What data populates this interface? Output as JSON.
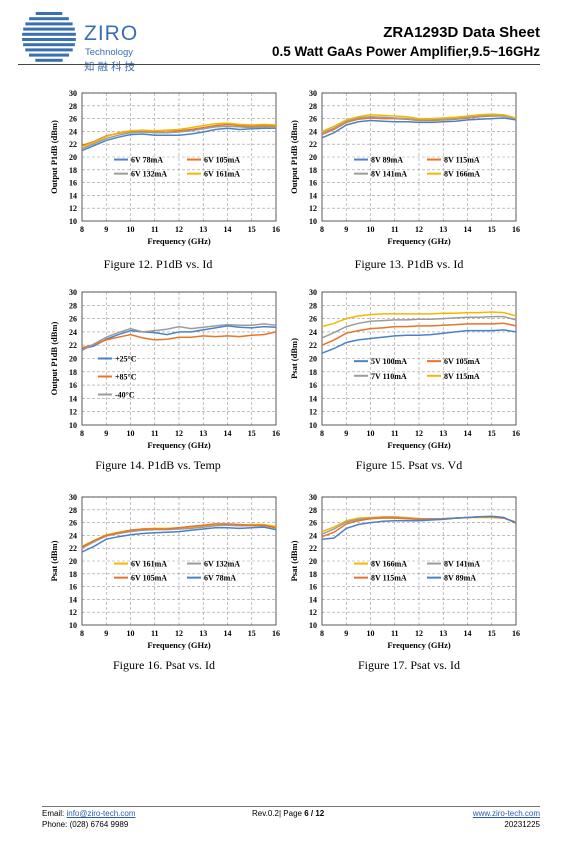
{
  "header": {
    "logo_name": "ZIRO",
    "logo_sub": "Technology",
    "logo_cn": "知融科技",
    "title": "ZRA1293D Data Sheet",
    "subtitle": "0.5 Watt GaAs Power Amplifier,9.5~16GHz",
    "logo_color": "#3a6fb0"
  },
  "footer": {
    "email_label": "Email:",
    "email": "info@ziro-tech.com",
    "phone_label": "Phone:",
    "phone": "(028) 6764 9989",
    "rev": "Rev.0.2| Page",
    "page": "6 / 12",
    "website": "www.ziro-tech.com",
    "date": "20231225"
  },
  "chart_data": [
    {
      "type": "line",
      "caption": "Figure 12. P1dB vs. Id",
      "xlabel": "Frequency (GHz)",
      "ylabel": "Output P1dB (dBm)",
      "xlim": [
        8,
        16
      ],
      "ylim": [
        10,
        30
      ],
      "xticks": [
        8,
        9,
        10,
        11,
        12,
        13,
        14,
        15,
        16
      ],
      "yticks": [
        10,
        12,
        14,
        16,
        18,
        20,
        22,
        24,
        26,
        28,
        30
      ],
      "grid": true,
      "legend": "bottom-center",
      "x": [
        8,
        8.5,
        9,
        9.5,
        10,
        10.5,
        11,
        11.5,
        12,
        12.5,
        13,
        13.5,
        14,
        14.5,
        15,
        15.5,
        16
      ],
      "series": [
        {
          "name": "6V 78mA",
          "color": "#4a82c8",
          "values": [
            21.0,
            21.8,
            22.6,
            23.1,
            23.5,
            23.6,
            23.4,
            23.4,
            23.4,
            23.6,
            23.9,
            24.3,
            24.5,
            24.3,
            24.4,
            24.5,
            24.5
          ]
        },
        {
          "name": "6V 105mA",
          "color": "#e8742a",
          "values": [
            21.8,
            22.4,
            23.3,
            23.7,
            24.0,
            24.1,
            24.0,
            24.1,
            24.1,
            24.3,
            24.6,
            24.9,
            25.1,
            24.9,
            24.8,
            24.9,
            24.8
          ]
        },
        {
          "name": "6V 132mA",
          "color": "#9c9c9c",
          "values": [
            21.3,
            22.1,
            22.9,
            23.4,
            23.8,
            23.9,
            23.8,
            23.8,
            23.9,
            24.1,
            24.4,
            24.7,
            24.8,
            24.7,
            24.6,
            24.7,
            24.6
          ]
        },
        {
          "name": "6V 161mA",
          "color": "#f2b800",
          "values": [
            21.6,
            22.3,
            23.2,
            23.8,
            24.1,
            24.2,
            24.1,
            24.2,
            24.3,
            24.6,
            24.9,
            25.2,
            25.3,
            25.1,
            25.0,
            25.1,
            25.0
          ]
        }
      ],
      "legend_order": [
        "6V 78mA",
        "6V 105mA",
        "6V 132mA",
        "6V 161mA"
      ]
    },
    {
      "type": "line",
      "caption": "Figure 13. P1dB vs. Id",
      "xlabel": "Frequency (GHz)",
      "ylabel": "Output P1dB (dBm)",
      "xlim": [
        8,
        16
      ],
      "ylim": [
        10,
        30
      ],
      "xticks": [
        8,
        9,
        10,
        11,
        12,
        13,
        14,
        15,
        16
      ],
      "yticks": [
        10,
        12,
        14,
        16,
        18,
        20,
        22,
        24,
        26,
        28,
        30
      ],
      "grid": true,
      "legend": "bottom-center",
      "x": [
        8,
        8.5,
        9,
        9.5,
        10,
        10.5,
        11,
        11.5,
        12,
        12.5,
        13,
        13.5,
        14,
        14.5,
        15,
        15.5,
        16
      ],
      "series": [
        {
          "name": "8V 89mA",
          "color": "#4a82c8",
          "values": [
            23.0,
            23.8,
            25.0,
            25.5,
            25.7,
            25.6,
            25.5,
            25.5,
            25.4,
            25.4,
            25.5,
            25.6,
            25.8,
            25.9,
            26.0,
            26.1,
            25.8
          ]
        },
        {
          "name": "8V 115mA",
          "color": "#e8742a",
          "values": [
            23.5,
            24.3,
            25.4,
            25.9,
            26.1,
            26.0,
            26.0,
            25.9,
            25.7,
            25.7,
            25.8,
            25.9,
            26.1,
            26.3,
            26.4,
            26.4,
            26.0
          ]
        },
        {
          "name": "8V 141mA",
          "color": "#9c9c9c",
          "values": [
            23.8,
            24.5,
            25.6,
            26.1,
            26.3,
            26.2,
            26.1,
            26.0,
            25.8,
            25.8,
            25.9,
            26.0,
            26.2,
            26.4,
            26.5,
            26.4,
            26.0
          ]
        },
        {
          "name": "8V 166mA",
          "color": "#f2b800",
          "values": [
            24.0,
            24.8,
            25.8,
            26.3,
            26.6,
            26.5,
            26.4,
            26.3,
            26.0,
            26.0,
            26.1,
            26.2,
            26.4,
            26.6,
            26.7,
            26.6,
            26.1
          ]
        }
      ],
      "legend_order": [
        "8V 89mA",
        "8V 115mA",
        "8V 141mA",
        "8V 166mA"
      ]
    },
    {
      "type": "line",
      "caption": "Figure 14. P1dB vs. Temp",
      "xlabel": "Frequency (GHz)",
      "ylabel": "Output P1dB (dBm)",
      "xlim": [
        8,
        16
      ],
      "ylim": [
        10,
        30
      ],
      "xticks": [
        8,
        9,
        10,
        11,
        12,
        13,
        14,
        15,
        16
      ],
      "yticks": [
        10,
        12,
        14,
        16,
        18,
        20,
        22,
        24,
        26,
        28,
        30
      ],
      "grid": true,
      "legend": "left-center",
      "x": [
        8,
        8.5,
        9,
        9.5,
        10,
        10.5,
        11,
        11.5,
        12,
        12.5,
        13,
        13.5,
        14,
        14.5,
        15,
        15.5,
        16
      ],
      "series": [
        {
          "name": "+25°C",
          "color": "#4a82c8",
          "values": [
            21.4,
            21.9,
            22.9,
            23.6,
            24.2,
            24.0,
            23.9,
            23.6,
            24.0,
            24.0,
            24.3,
            24.6,
            24.9,
            24.7,
            24.6,
            24.8,
            24.7
          ]
        },
        {
          "name": "+85°C",
          "color": "#e8742a",
          "values": [
            21.6,
            22.1,
            22.8,
            23.2,
            23.6,
            23.1,
            22.8,
            22.9,
            23.2,
            23.2,
            23.4,
            23.3,
            23.4,
            23.3,
            23.5,
            23.6,
            24.0
          ]
        },
        {
          "name": "-40°C",
          "color": "#9c9c9c",
          "values": [
            21.2,
            22.2,
            23.2,
            23.9,
            24.5,
            24.0,
            24.2,
            24.4,
            24.8,
            24.5,
            24.7,
            24.9,
            25.1,
            25.0,
            25.0,
            25.2,
            25.0
          ]
        }
      ],
      "legend_order": [
        "+25°C",
        "+85°C",
        "-40°C"
      ]
    },
    {
      "type": "line",
      "caption": "Figure 15. Psat vs. Vd",
      "xlabel": "Frequency (GHz)",
      "ylabel": "Psat (dBm)",
      "xlim": [
        8,
        16
      ],
      "ylim": [
        10,
        30
      ],
      "xticks": [
        8,
        9,
        10,
        11,
        12,
        13,
        14,
        15,
        16
      ],
      "yticks": [
        10,
        12,
        14,
        16,
        18,
        20,
        22,
        24,
        26,
        28,
        30
      ],
      "grid": true,
      "legend": "bottom-center",
      "x": [
        8,
        8.5,
        9,
        9.5,
        10,
        10.5,
        11,
        11.5,
        12,
        12.5,
        13,
        13.5,
        14,
        14.5,
        15,
        15.5,
        16
      ],
      "series": [
        {
          "name": "5V 100mA",
          "color": "#4a82c8",
          "values": [
            20.8,
            21.5,
            22.4,
            22.8,
            23.0,
            23.2,
            23.4,
            23.5,
            23.5,
            23.6,
            23.8,
            24.0,
            24.2,
            24.2,
            24.2,
            24.3,
            24.0
          ]
        },
        {
          "name": "6V 105mA",
          "color": "#e8742a",
          "values": [
            22.0,
            22.8,
            23.8,
            24.2,
            24.5,
            24.6,
            24.8,
            24.8,
            24.9,
            24.9,
            25.0,
            25.1,
            25.2,
            25.2,
            25.2,
            25.3,
            24.9
          ]
        },
        {
          "name": "7V 110mA",
          "color": "#9c9c9c",
          "values": [
            23.1,
            23.9,
            24.8,
            25.3,
            25.6,
            25.7,
            25.8,
            25.8,
            25.9,
            25.9,
            26.0,
            26.1,
            26.2,
            26.2,
            26.3,
            26.3,
            25.8
          ]
        },
        {
          "name": "8V 115mA",
          "color": "#f2b800",
          "values": [
            24.8,
            25.3,
            26.0,
            26.4,
            26.6,
            26.7,
            26.7,
            26.7,
            26.7,
            26.7,
            26.8,
            26.8,
            26.9,
            26.9,
            27.0,
            26.9,
            26.4
          ]
        }
      ],
      "legend_order": [
        "5V 100mA",
        "6V 105mA",
        "7V 110mA",
        "8V 115mA"
      ]
    },
    {
      "type": "line",
      "caption": "Figure 16. Psat vs. Id",
      "xlabel": "Frequency (GHz)",
      "ylabel": "Psat (dBm)",
      "xlim": [
        8,
        16
      ],
      "ylim": [
        10,
        30
      ],
      "xticks": [
        8,
        9,
        10,
        11,
        12,
        13,
        14,
        15,
        16
      ],
      "yticks": [
        10,
        12,
        14,
        16,
        18,
        20,
        22,
        24,
        26,
        28,
        30
      ],
      "grid": true,
      "legend": "bottom-center",
      "x": [
        8,
        8.5,
        9,
        9.5,
        10,
        10.5,
        11,
        11.5,
        12,
        12.5,
        13,
        13.5,
        14,
        14.5,
        15,
        15.5,
        16
      ],
      "series": [
        {
          "name": "6V 161mA",
          "color": "#f2b800",
          "values": [
            22.3,
            23.2,
            24.1,
            24.5,
            24.8,
            25.0,
            25.1,
            25.1,
            25.2,
            25.3,
            25.5,
            25.6,
            25.7,
            25.6,
            25.7,
            25.7,
            25.4
          ]
        },
        {
          "name": "6V 132mA",
          "color": "#9c9c9c",
          "values": [
            22.0,
            23.0,
            23.9,
            24.3,
            24.6,
            24.8,
            24.9,
            24.9,
            25.0,
            25.1,
            25.3,
            25.5,
            25.6,
            25.5,
            25.5,
            25.5,
            25.2
          ]
        },
        {
          "name": "6V 105mA",
          "color": "#e8742a",
          "values": [
            22.2,
            23.2,
            24.0,
            24.4,
            24.8,
            25.0,
            25.0,
            25.0,
            25.2,
            25.4,
            25.6,
            25.8,
            25.8,
            25.7,
            25.6,
            25.6,
            25.2
          ]
        },
        {
          "name": "6V 78mA",
          "color": "#4a82c8",
          "values": [
            21.4,
            22.3,
            23.4,
            23.8,
            24.1,
            24.3,
            24.4,
            24.5,
            24.6,
            24.8,
            25.0,
            25.2,
            25.2,
            25.1,
            25.2,
            25.3,
            24.9
          ]
        }
      ],
      "legend_order": [
        "6V 161mA",
        "6V 132mA",
        "6V 105mA",
        "6V 78mA"
      ]
    },
    {
      "type": "line",
      "caption": "Figure 17. Psat vs. Id",
      "xlabel": "Frequency (GHz)",
      "ylabel": "Psat (dBm)",
      "xlim": [
        8,
        16
      ],
      "ylim": [
        10,
        30
      ],
      "xticks": [
        8,
        9,
        10,
        11,
        12,
        13,
        14,
        15,
        16
      ],
      "yticks": [
        10,
        12,
        14,
        16,
        18,
        20,
        22,
        24,
        26,
        28,
        30
      ],
      "grid": true,
      "legend": "bottom-center",
      "x": [
        8,
        8.5,
        9,
        9.5,
        10,
        10.5,
        11,
        11.5,
        12,
        12.5,
        13,
        13.5,
        14,
        14.5,
        15,
        15.5,
        16
      ],
      "series": [
        {
          "name": "8V 166mA",
          "color": "#f2b800",
          "values": [
            24.6,
            25.3,
            26.3,
            26.7,
            26.8,
            26.9,
            26.9,
            26.8,
            26.6,
            26.6,
            26.6,
            26.7,
            26.8,
            26.8,
            26.8,
            26.7,
            26.1
          ]
        },
        {
          "name": "8V 141mA",
          "color": "#9c9c9c",
          "values": [
            24.2,
            25.0,
            26.1,
            26.5,
            26.7,
            26.8,
            26.8,
            26.7,
            26.6,
            26.6,
            26.6,
            26.7,
            26.8,
            26.9,
            26.9,
            26.7,
            26.0
          ]
        },
        {
          "name": "8V 115mA",
          "color": "#e8742a",
          "values": [
            23.8,
            24.5,
            25.8,
            26.3,
            26.6,
            26.7,
            26.7,
            26.6,
            26.5,
            26.5,
            26.6,
            26.7,
            26.8,
            26.9,
            26.9,
            26.7,
            26.0
          ]
        },
        {
          "name": "8V 89mA",
          "color": "#4a82c8",
          "values": [
            23.4,
            23.6,
            25.1,
            25.7,
            26.0,
            26.2,
            26.3,
            26.3,
            26.3,
            26.4,
            26.5,
            26.7,
            26.8,
            26.9,
            27.0,
            26.8,
            25.9
          ]
        }
      ],
      "legend_order": [
        "8V 166mA",
        "8V 141mA",
        "8V 115mA",
        "8V 89mA"
      ]
    }
  ]
}
